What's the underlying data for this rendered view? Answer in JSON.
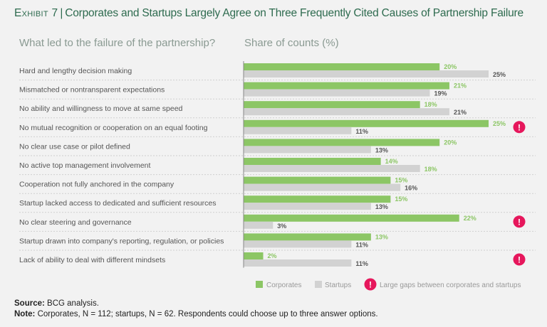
{
  "header": {
    "exhibit": "Exhibit 7",
    "title": "Corporates and Startups Largely Agree on Three Frequently Cited Causes of Partnership Failure",
    "left_subhead": "What led to the failure of the partnership?",
    "right_subhead": "Share of counts (%)"
  },
  "chart_data": {
    "type": "bar",
    "orientation": "horizontal",
    "title": "Corporates and Startups Largely Agree on Three Frequently Cited Causes of Partnership Failure",
    "xlabel": "Share of counts (%)",
    "ylabel": "What led to the failure of the partnership?",
    "xlim": [
      0,
      25
    ],
    "grid": false,
    "legend_position": "bottom-right",
    "categories": [
      "Hard and lengthy decision making",
      "Mismatched or nontransparent expectations",
      "No ability and willingness to move at same speed",
      "No mutual recognition or cooperation on an equal footing",
      "No clear use case or pilot defined",
      "No active top management involvement",
      "Cooperation not fully anchored in the company",
      "Startup lacked access to dedicated and sufficient resources",
      "No clear steering and governance",
      "Startup drawn into company's reporting, regulation, or policies",
      "Lack of ability to deal with different mindsets"
    ],
    "series": [
      {
        "name": "Corporates",
        "color": "#8cc665",
        "label_color": "#8cc665",
        "values": [
          20,
          21,
          18,
          25,
          20,
          14,
          15,
          15,
          22,
          13,
          2
        ]
      },
      {
        "name": "Startups",
        "color": "#d2d2d2",
        "label_color": "#555555",
        "values": [
          25,
          19,
          21,
          11,
          13,
          18,
          16,
          13,
          3,
          11,
          11
        ]
      }
    ],
    "startup_label_highlight": [
      false,
      false,
      false,
      false,
      false,
      true,
      false,
      false,
      false,
      false,
      false
    ],
    "large_gap_flags": [
      false,
      false,
      false,
      true,
      false,
      false,
      false,
      false,
      true,
      false,
      true
    ],
    "value_suffix": "%",
    "annotations": {
      "gap_marker_color": "#e6175c",
      "gap_marker_glyph": "!",
      "gap_legend_label": "Large gaps between corporates and startups"
    }
  },
  "legend": {
    "items": [
      {
        "label": "Corporates",
        "color": "#8cc665"
      },
      {
        "label": "Startups",
        "color": "#d2d2d2"
      }
    ],
    "gap_label": "Large gaps between corporates and startups"
  },
  "footer": {
    "source_label": "Source:",
    "source_text": "BCG analysis.",
    "note_label": "Note:",
    "note_text": "Corporates, N = 112; startups, N = 62. Respondents could choose up to three answer options."
  }
}
